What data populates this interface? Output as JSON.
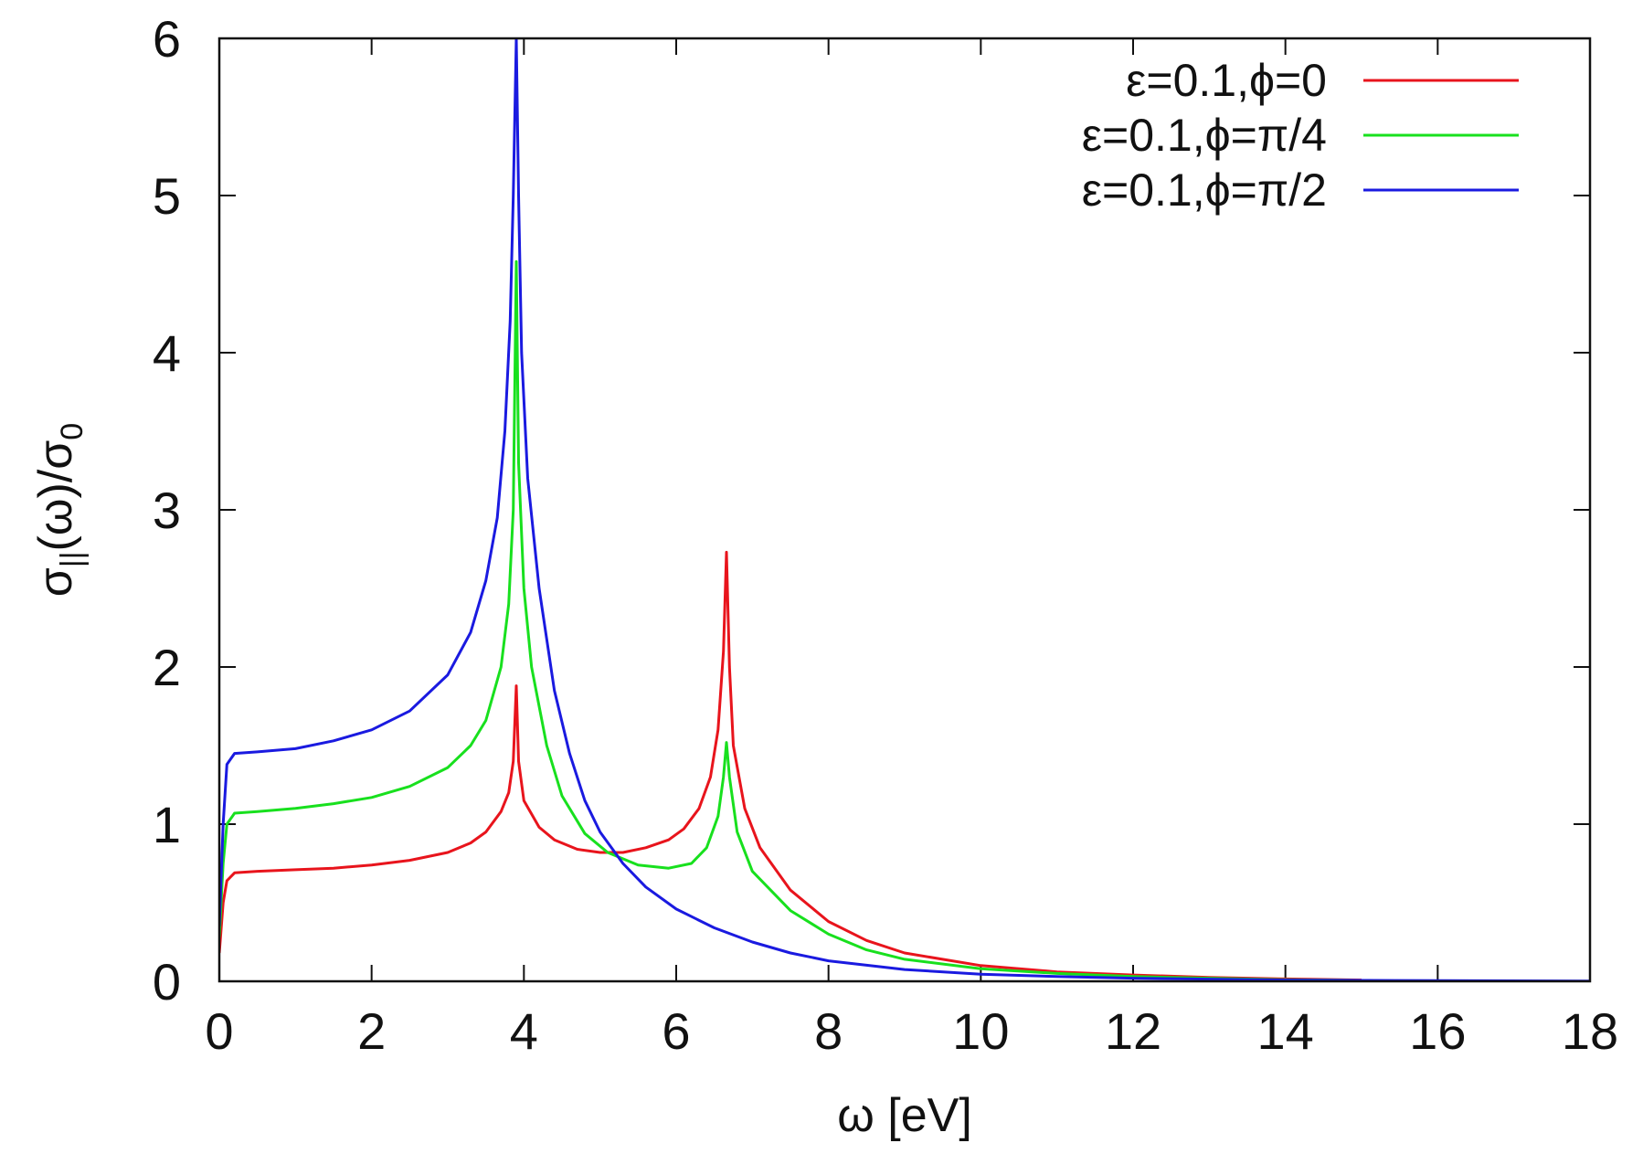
{
  "chart_data": {
    "type": "line",
    "xlabel": "ω [eV]",
    "ylabel_main": "σ",
    "ylabel_sub1": "||",
    "ylabel_mid": "(ω)/σ",
    "ylabel_sub2": "0",
    "xlim": [
      0,
      18
    ],
    "ylim": [
      0,
      6
    ],
    "xticks": [
      0,
      2,
      4,
      6,
      8,
      10,
      12,
      14,
      16,
      18
    ],
    "yticks": [
      0,
      1,
      2,
      3,
      4,
      5,
      6
    ],
    "grid": false,
    "legend_position": "top-right",
    "series": [
      {
        "name": "ε=0.1,ϕ=0",
        "color": "#e8141c",
        "points": [
          [
            0,
            0.18
          ],
          [
            0.05,
            0.5
          ],
          [
            0.1,
            0.64
          ],
          [
            0.2,
            0.69
          ],
          [
            0.5,
            0.7
          ],
          [
            1,
            0.71
          ],
          [
            1.5,
            0.72
          ],
          [
            2,
            0.74
          ],
          [
            2.5,
            0.77
          ],
          [
            3,
            0.82
          ],
          [
            3.3,
            0.88
          ],
          [
            3.5,
            0.95
          ],
          [
            3.7,
            1.08
          ],
          [
            3.8,
            1.2
          ],
          [
            3.86,
            1.4
          ],
          [
            3.9,
            1.88
          ],
          [
            3.93,
            1.4
          ],
          [
            4.0,
            1.15
          ],
          [
            4.2,
            0.98
          ],
          [
            4.4,
            0.9
          ],
          [
            4.7,
            0.84
          ],
          [
            5.0,
            0.82
          ],
          [
            5.3,
            0.82
          ],
          [
            5.6,
            0.85
          ],
          [
            5.9,
            0.9
          ],
          [
            6.1,
            0.97
          ],
          [
            6.3,
            1.1
          ],
          [
            6.45,
            1.3
          ],
          [
            6.55,
            1.6
          ],
          [
            6.62,
            2.1
          ],
          [
            6.66,
            2.73
          ],
          [
            6.7,
            2.0
          ],
          [
            6.75,
            1.5
          ],
          [
            6.9,
            1.1
          ],
          [
            7.1,
            0.85
          ],
          [
            7.5,
            0.58
          ],
          [
            8,
            0.38
          ],
          [
            8.5,
            0.26
          ],
          [
            9,
            0.18
          ],
          [
            10,
            0.1
          ],
          [
            11,
            0.06
          ],
          [
            12,
            0.04
          ],
          [
            13,
            0.025
          ],
          [
            14,
            0.015
          ],
          [
            15,
            0.008
          ]
        ]
      },
      {
        "name": "ε=0.1,ϕ=π/4",
        "color": "#18e01e",
        "points": [
          [
            0,
            0.28
          ],
          [
            0.05,
            0.75
          ],
          [
            0.1,
            1.0
          ],
          [
            0.2,
            1.07
          ],
          [
            0.5,
            1.08
          ],
          [
            1,
            1.1
          ],
          [
            1.5,
            1.13
          ],
          [
            2,
            1.17
          ],
          [
            2.5,
            1.24
          ],
          [
            3,
            1.36
          ],
          [
            3.3,
            1.5
          ],
          [
            3.5,
            1.66
          ],
          [
            3.7,
            2.0
          ],
          [
            3.8,
            2.4
          ],
          [
            3.86,
            3.0
          ],
          [
            3.9,
            4.58
          ],
          [
            3.93,
            3.3
          ],
          [
            4.0,
            2.5
          ],
          [
            4.1,
            2.0
          ],
          [
            4.3,
            1.5
          ],
          [
            4.5,
            1.18
          ],
          [
            4.8,
            0.94
          ],
          [
            5.1,
            0.82
          ],
          [
            5.5,
            0.74
          ],
          [
            5.9,
            0.72
          ],
          [
            6.2,
            0.75
          ],
          [
            6.4,
            0.85
          ],
          [
            6.55,
            1.05
          ],
          [
            6.62,
            1.3
          ],
          [
            6.66,
            1.52
          ],
          [
            6.7,
            1.3
          ],
          [
            6.8,
            0.95
          ],
          [
            7.0,
            0.7
          ],
          [
            7.5,
            0.45
          ],
          [
            8,
            0.3
          ],
          [
            8.5,
            0.2
          ],
          [
            9,
            0.14
          ],
          [
            10,
            0.08
          ],
          [
            11,
            0.05
          ],
          [
            12,
            0.03
          ],
          [
            13,
            0.02
          ],
          [
            14,
            0.01
          ],
          [
            15,
            0.006
          ]
        ]
      },
      {
        "name": "ε=0.1,ϕ=π/2",
        "color": "#1a1ae0",
        "points": [
          [
            0,
            0.35
          ],
          [
            0.05,
            1.0
          ],
          [
            0.1,
            1.38
          ],
          [
            0.2,
            1.45
          ],
          [
            0.5,
            1.46
          ],
          [
            1,
            1.48
          ],
          [
            1.5,
            1.53
          ],
          [
            2,
            1.6
          ],
          [
            2.5,
            1.72
          ],
          [
            3,
            1.95
          ],
          [
            3.3,
            2.22
          ],
          [
            3.5,
            2.55
          ],
          [
            3.65,
            2.95
          ],
          [
            3.75,
            3.5
          ],
          [
            3.82,
            4.2
          ],
          [
            3.86,
            5.0
          ],
          [
            3.9,
            6.0
          ],
          [
            3.93,
            5.0
          ],
          [
            3.97,
            4.0
          ],
          [
            4.05,
            3.2
          ],
          [
            4.2,
            2.5
          ],
          [
            4.4,
            1.85
          ],
          [
            4.6,
            1.45
          ],
          [
            4.8,
            1.15
          ],
          [
            5.0,
            0.95
          ],
          [
            5.3,
            0.75
          ],
          [
            5.6,
            0.6
          ],
          [
            6,
            0.46
          ],
          [
            6.5,
            0.34
          ],
          [
            7,
            0.25
          ],
          [
            7.5,
            0.18
          ],
          [
            8,
            0.13
          ],
          [
            9,
            0.075
          ],
          [
            10,
            0.045
          ],
          [
            11,
            0.03
          ],
          [
            12,
            0.02
          ],
          [
            14,
            0.008
          ],
          [
            16,
            0.004
          ],
          [
            18,
            0.002
          ]
        ]
      }
    ]
  }
}
